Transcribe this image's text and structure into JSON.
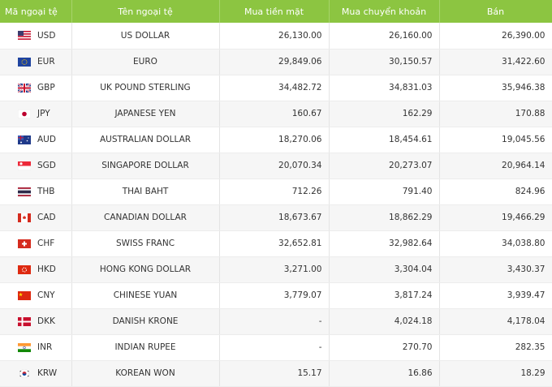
{
  "table": {
    "headers": [
      "Mã ngoại tệ",
      "Tên ngoại tệ",
      "Mua tiền mặt",
      "Mua chuyển khoản",
      "Bán"
    ],
    "rows": [
      [
        "USD",
        "US DOLLAR",
        "26,130.00",
        "26,160.00",
        "26,390.00"
      ],
      [
        "EUR",
        "EURO",
        "29,849.06",
        "30,150.57",
        "31,422.60"
      ],
      [
        "GBP",
        "UK POUND STERLING",
        "34,482.72",
        "34,831.03",
        "35,946.38"
      ],
      [
        "JPY",
        "JAPANESE YEN",
        "160.67",
        "162.29",
        "170.88"
      ],
      [
        "AUD",
        "AUSTRALIAN DOLLAR",
        "18,270.06",
        "18,454.61",
        "19,045.56"
      ],
      [
        "SGD",
        "SINGAPORE DOLLAR",
        "20,070.34",
        "20,273.07",
        "20,964.14"
      ],
      [
        "THB",
        "THAI BAHT",
        "712.26",
        "791.40",
        "824.96"
      ],
      [
        "CAD",
        "CANADIAN DOLLAR",
        "18,673.67",
        "18,862.29",
        "19,466.29"
      ],
      [
        "CHF",
        "SWISS FRANC",
        "32,652.81",
        "32,982.64",
        "34,038.80"
      ],
      [
        "HKD",
        "HONG KONG DOLLAR",
        "3,271.00",
        "3,304.04",
        "3,430.37"
      ],
      [
        "CNY",
        "CHINESE YUAN",
        "3,779.07",
        "3,817.24",
        "3,939.47"
      ],
      [
        "DKK",
        "DANISH KRONE",
        "-",
        "4,024.18",
        "4,178.04"
      ],
      [
        "INR",
        "INDIAN RUPEE",
        "-",
        "270.70",
        "282.35"
      ],
      [
        "KRW",
        "KOREAN WON",
        "15.17",
        "16.86",
        "18.29"
      ]
    ]
  }
}
